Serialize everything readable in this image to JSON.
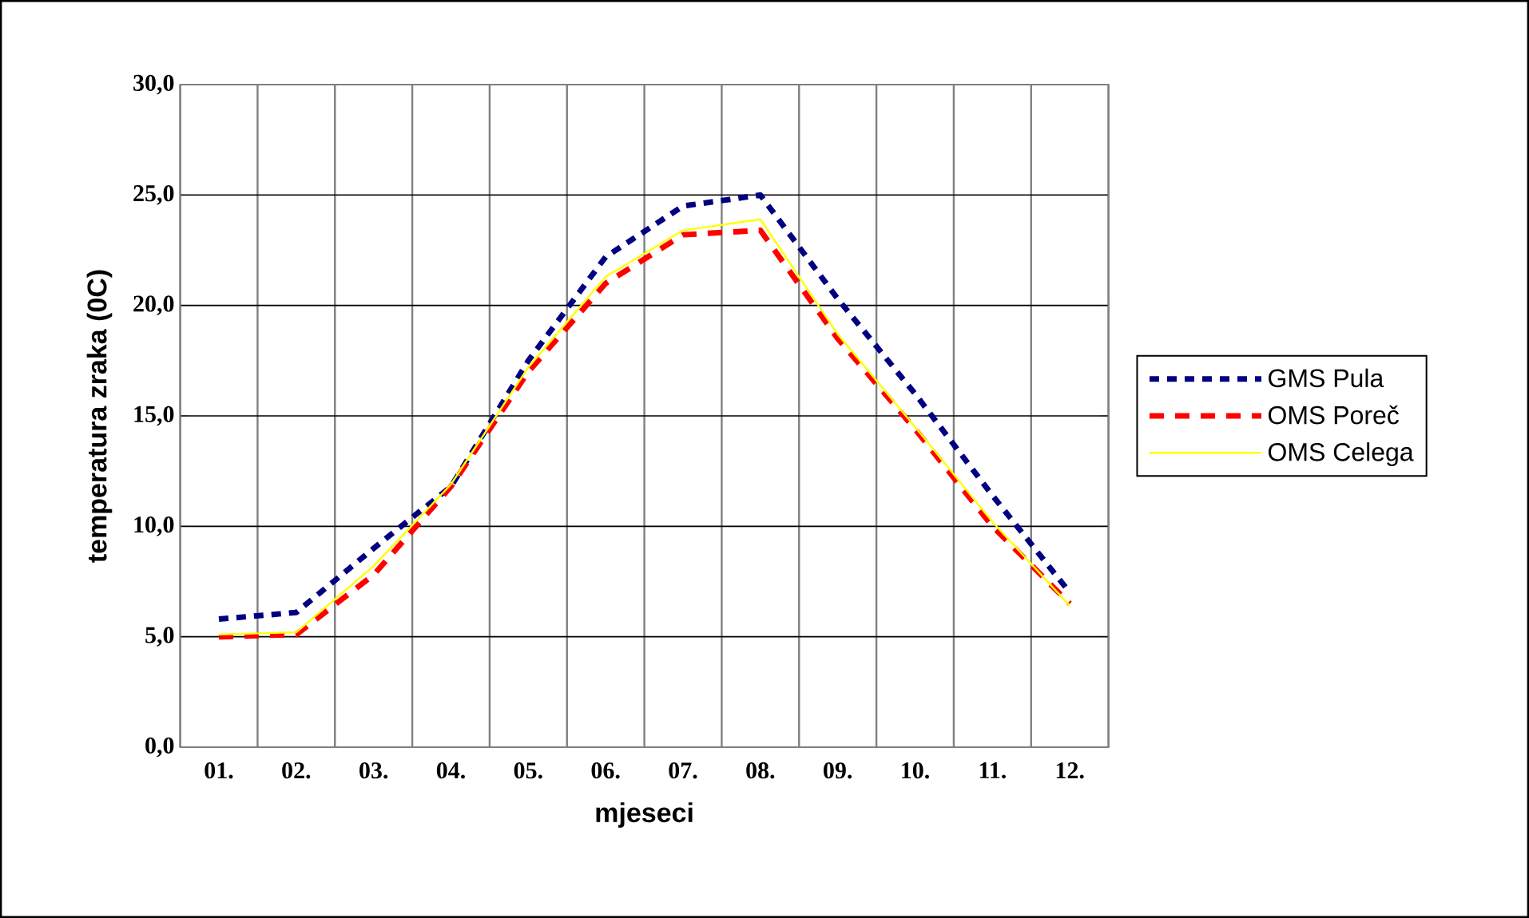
{
  "chart_data": {
    "type": "line",
    "xlabel": "mjeseci",
    "ylabel": "temperatura zraka (0C)",
    "categories": [
      "01.",
      "02.",
      "03.",
      "04.",
      "05.",
      "06.",
      "07.",
      "08.",
      "09.",
      "10.",
      "11.",
      "12."
    ],
    "series": [
      {
        "name": "GMS Pula",
        "color": "#000080",
        "line_style": "dotted",
        "values": [
          5.8,
          6.1,
          9.0,
          11.8,
          17.5,
          22.2,
          24.5,
          25.0,
          20.3,
          16.0,
          11.4,
          7.0
        ]
      },
      {
        "name": "OMS Poreč",
        "color": "#ff0000",
        "line_style": "dashed",
        "values": [
          5.0,
          5.1,
          7.8,
          11.8,
          17.0,
          21.0,
          23.2,
          23.4,
          18.5,
          14.4,
          10.0,
          6.5
        ]
      },
      {
        "name": "OMS Celega",
        "color": "#ffff00",
        "line_style": "solid",
        "values": [
          5.1,
          5.2,
          8.2,
          11.9,
          17.2,
          21.3,
          23.4,
          23.9,
          18.7,
          14.5,
          10.2,
          6.4
        ]
      }
    ],
    "ylim": [
      0,
      30
    ],
    "yticks": [
      {
        "value": 0,
        "label": "0,0"
      },
      {
        "value": 5,
        "label": "5,0"
      },
      {
        "value": 10,
        "label": "10,0"
      },
      {
        "value": 15,
        "label": "15,0"
      },
      {
        "value": 20,
        "label": "20,0"
      },
      {
        "value": 25,
        "label": "25,0"
      },
      {
        "value": 30,
        "label": "30,0"
      }
    ],
    "grid": true,
    "legend": "right"
  }
}
